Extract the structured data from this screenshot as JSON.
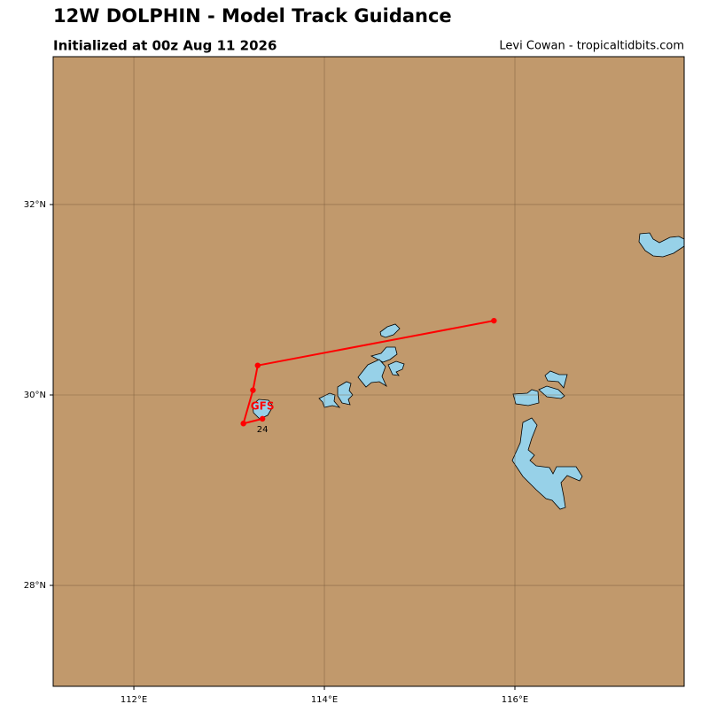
{
  "chart_data": {
    "type": "track_map",
    "title": "12W DOLPHIN - Model Track Guidance",
    "subtitle": "Initialized at 00z Aug 11 2026",
    "credit": "Levi Cowan - tropicaltidbits.com",
    "xlim": [
      111.153,
      117.777
    ],
    "ylim": [
      26.94,
      33.553
    ],
    "xticks": [
      {
        "value": 112,
        "label": "112°E"
      },
      {
        "value": 114,
        "label": "114°E"
      },
      {
        "value": 116,
        "label": "116°E"
      }
    ],
    "yticks": [
      {
        "value": 28,
        "label": "28°N"
      },
      {
        "value": 30,
        "label": "30°N"
      },
      {
        "value": 32,
        "label": "32°N"
      }
    ],
    "grid": true,
    "land_color": "#c1996c",
    "grid_color": "#7a5c3c",
    "series": [
      {
        "name": "GFS",
        "color": "#ff0000",
        "x": [
          113.35,
          113.15,
          113.25,
          113.3,
          115.78
        ],
        "values": [
          29.75,
          29.7,
          30.05,
          30.31,
          30.78
        ],
        "point_labels": [
          "24",
          null,
          null,
          null,
          null
        ]
      }
    ]
  }
}
